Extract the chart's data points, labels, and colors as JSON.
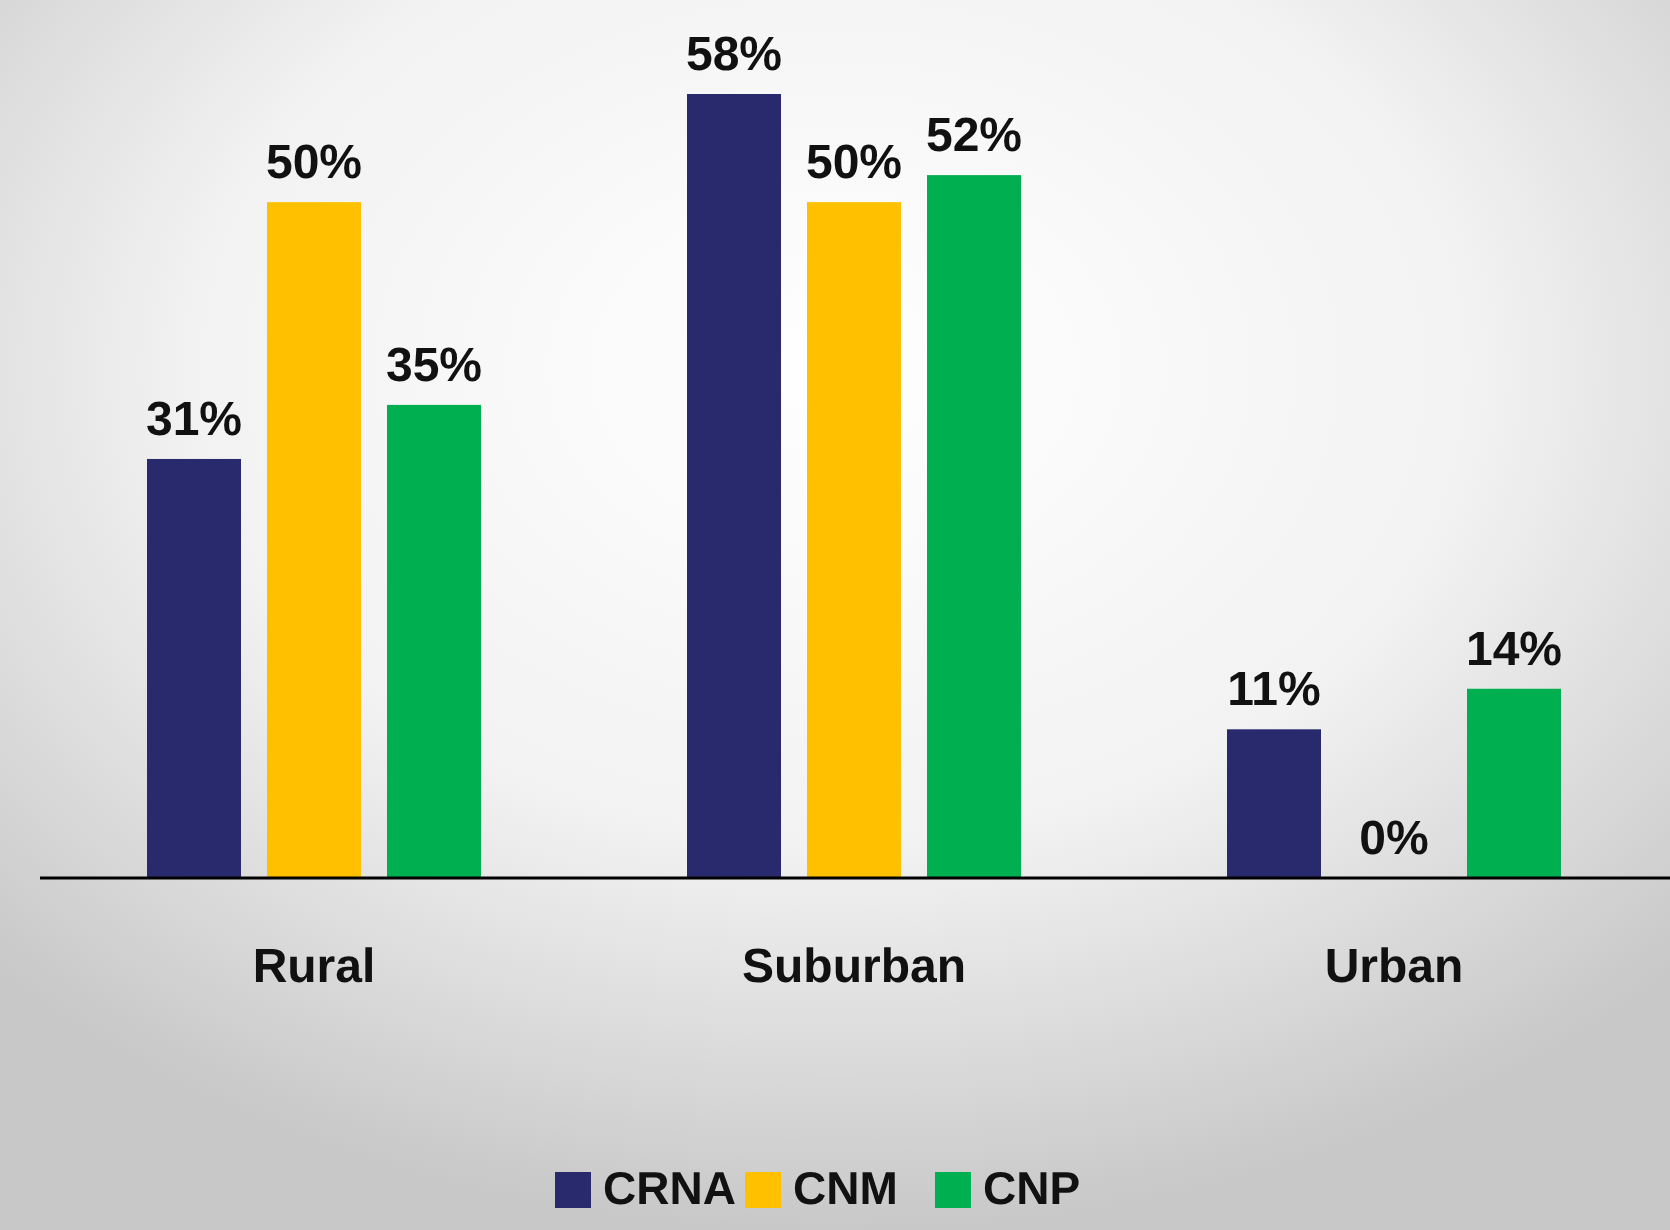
{
  "chart_data": {
    "type": "bar",
    "categories": [
      "Rural",
      "Suburban",
      "Urban"
    ],
    "series": [
      {
        "name": "CRNA",
        "color": "#29296e",
        "values": [
          31,
          58,
          11
        ],
        "value_labels": [
          "31%",
          "58%",
          "11%"
        ]
      },
      {
        "name": "CNM",
        "color": "#ffc000",
        "values": [
          50,
          50,
          0
        ],
        "value_labels": [
          "50%",
          "50%",
          "0%"
        ]
      },
      {
        "name": "CNP",
        "color": "#00b050",
        "values": [
          35,
          52,
          14
        ],
        "value_labels": [
          "35%",
          "52%",
          "14%"
        ]
      }
    ],
    "legend": "bottom",
    "grid": false
  }
}
